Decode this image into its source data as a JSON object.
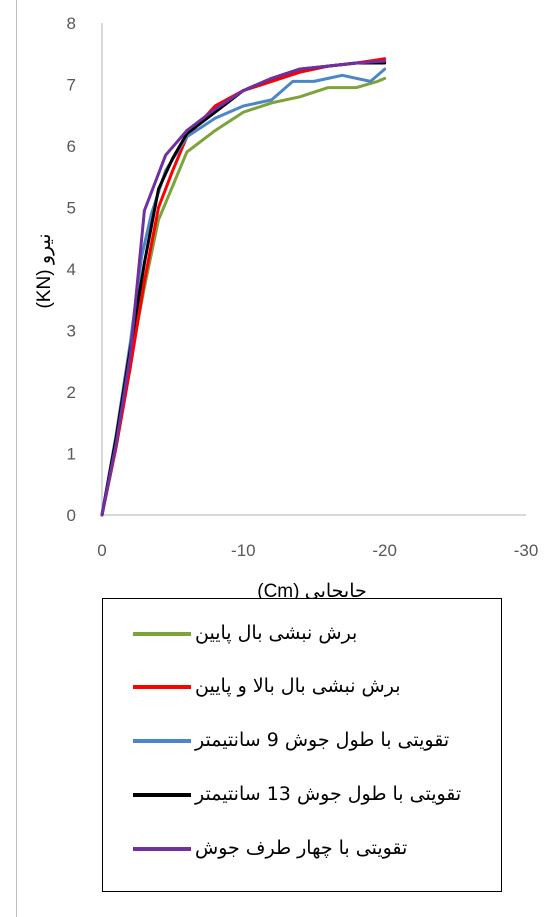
{
  "chart_data": {
    "type": "line",
    "xlabel": "جابجایی (Cm)",
    "ylabel": "نیرو (KN)",
    "xlim": [
      0,
      -30
    ],
    "ylim": [
      0,
      8
    ],
    "x_ticks": [
      "0",
      "-10",
      "-20",
      "-30"
    ],
    "y_ticks": [
      "0",
      "1",
      "2",
      "3",
      "4",
      "5",
      "6",
      "7",
      "8"
    ],
    "grid": false,
    "legend_position": "bottom",
    "series": [
      {
        "name": "برش نبشی بال پایین",
        "color": "#7ea33a",
        "x": [
          0,
          -1,
          -2,
          -3,
          -4,
          -5,
          -6,
          -8,
          -10,
          -12,
          -14,
          -16,
          -18,
          -19.5,
          -20
        ],
        "y": [
          0,
          1.2,
          2.5,
          3.7,
          4.8,
          5.35,
          5.9,
          6.25,
          6.55,
          6.7,
          6.8,
          6.95,
          6.95,
          7.05,
          7.1
        ]
      },
      {
        "name": "برش نبشی بال بالا و پایین",
        "color": "#ff0000",
        "x": [
          0,
          -1,
          -2,
          -3,
          -4,
          -5,
          -6,
          -8,
          -10,
          -12,
          -14,
          -16,
          -18,
          -19.5,
          -20
        ],
        "y": [
          0,
          1.1,
          2.4,
          3.8,
          5.0,
          5.6,
          6.15,
          6.65,
          6.9,
          7.05,
          7.2,
          7.3,
          7.35,
          7.4,
          7.42
        ]
      },
      {
        "name": "تقویتی با طول جوش 9 سانتیمتر",
        "color": "#4a86c8",
        "x": [
          0,
          -1,
          -2,
          -2.8,
          -3.5,
          -4.5,
          -6,
          -8,
          -10,
          -12,
          -13.5,
          -15,
          -16,
          -17,
          -19,
          -20
        ],
        "y": [
          0,
          1.3,
          2.8,
          4.2,
          4.9,
          5.6,
          6.15,
          6.45,
          6.65,
          6.75,
          7.05,
          7.05,
          7.1,
          7.15,
          7.05,
          7.25
        ]
      },
      {
        "name": "تقویتی با طول جوش 13 سانتیمتر",
        "color": "#000000",
        "x": [
          0,
          -1,
          -2,
          -3,
          -4,
          -5,
          -6,
          -8,
          -10,
          -12,
          -14,
          -16,
          -18,
          -20
        ],
        "y": [
          0,
          1.25,
          2.7,
          4.1,
          5.3,
          5.8,
          6.2,
          6.55,
          6.9,
          7.1,
          7.25,
          7.3,
          7.35,
          7.35
        ]
      },
      {
        "name": "تقویتی با چهار طرف جوش",
        "color": "#7030a0",
        "x": [
          0,
          -1,
          -2,
          -3,
          -4.5,
          -6,
          -8,
          -10,
          -12,
          -14,
          -16,
          -18,
          -20
        ],
        "y": [
          0,
          1.15,
          2.6,
          4.95,
          5.85,
          6.25,
          6.6,
          6.9,
          7.1,
          7.25,
          7.3,
          7.35,
          7.38
        ]
      }
    ]
  }
}
